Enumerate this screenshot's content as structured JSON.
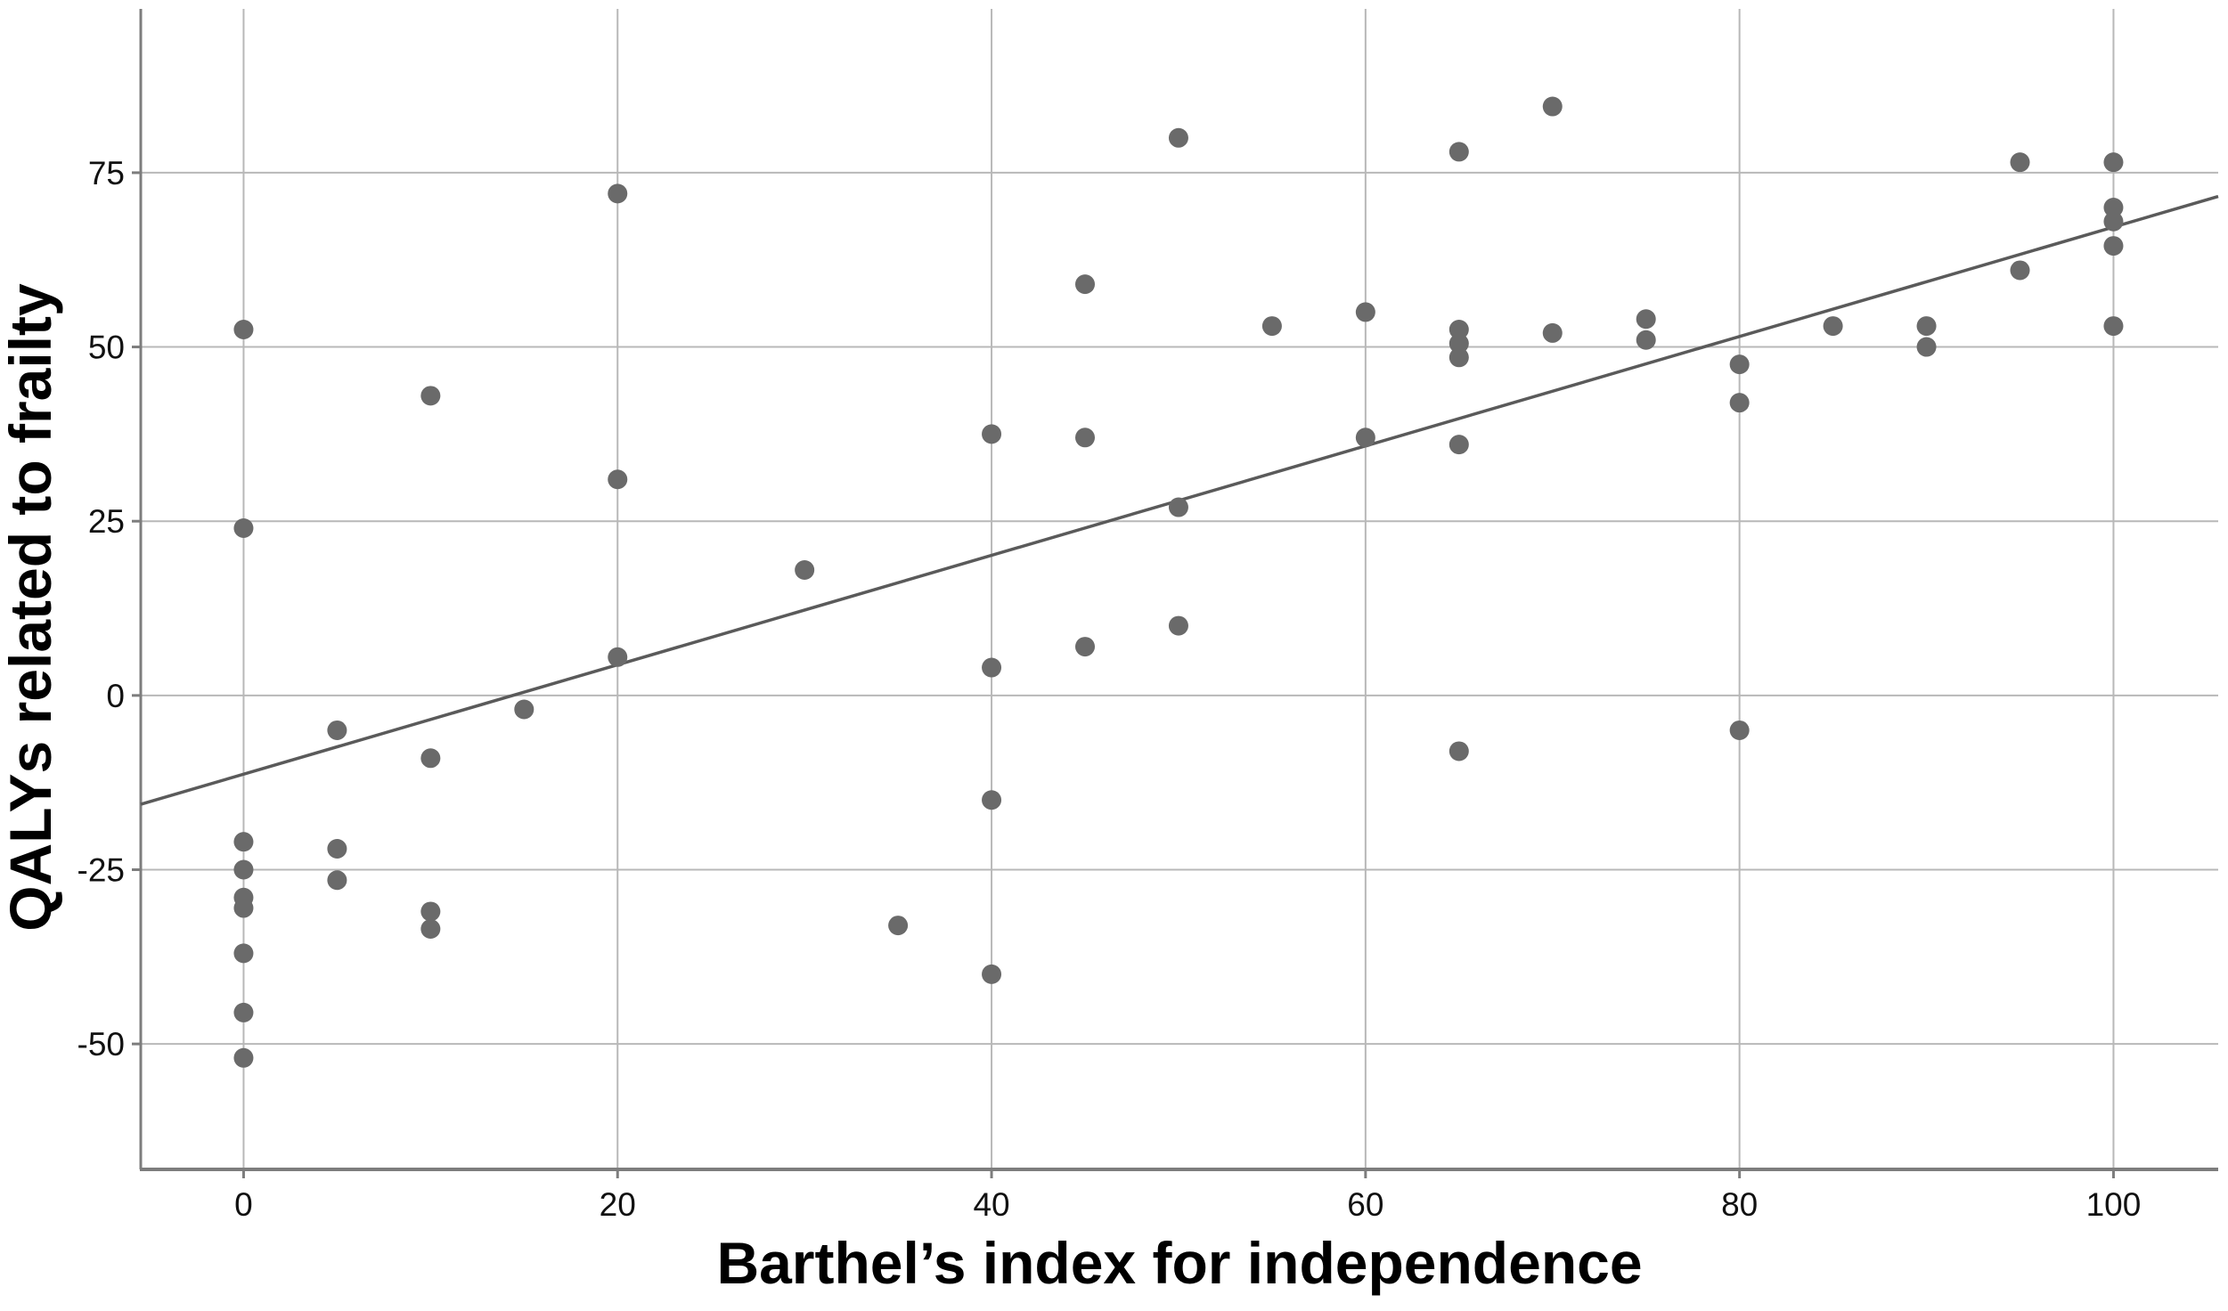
{
  "chart_data": {
    "type": "scatter",
    "title": "",
    "xlabel": "Barthel’s index for independence",
    "ylabel": "QALYs related to frailty",
    "x_ticks": [
      0,
      20,
      40,
      60,
      80,
      100
    ],
    "y_ticks": [
      75,
      50,
      25,
      0,
      -25,
      -50
    ],
    "xlim": [
      -5.5,
      105.6
    ],
    "ylim": [
      -68,
      98.5
    ],
    "grid": true,
    "legend": "none",
    "points": [
      [
        0,
        52.5
      ],
      [
        0,
        24
      ],
      [
        0,
        -21
      ],
      [
        0,
        -25
      ],
      [
        0,
        -29
      ],
      [
        0,
        -30.5
      ],
      [
        0,
        -37
      ],
      [
        0,
        -45.5
      ],
      [
        0,
        -52
      ],
      [
        5,
        -5
      ],
      [
        5,
        -22
      ],
      [
        5,
        -26.5
      ],
      [
        10,
        43
      ],
      [
        10,
        -9
      ],
      [
        10,
        -31
      ],
      [
        10,
        -33.5
      ],
      [
        15,
        -2
      ],
      [
        20,
        72
      ],
      [
        20,
        31
      ],
      [
        20,
        5.5
      ],
      [
        30,
        18
      ],
      [
        35,
        -33
      ],
      [
        40,
        37.5
      ],
      [
        40,
        4
      ],
      [
        40,
        -15
      ],
      [
        40,
        -40
      ],
      [
        45,
        59
      ],
      [
        45,
        37
      ],
      [
        45,
        7
      ],
      [
        50,
        80
      ],
      [
        50,
        27
      ],
      [
        50,
        10
      ],
      [
        55,
        53
      ],
      [
        60,
        55
      ],
      [
        60,
        37
      ],
      [
        65,
        78
      ],
      [
        65,
        52.5
      ],
      [
        65,
        50.5
      ],
      [
        65,
        48.5
      ],
      [
        65,
        36
      ],
      [
        65,
        -8
      ],
      [
        70,
        84.5
      ],
      [
        70,
        52
      ],
      [
        75,
        54
      ],
      [
        75,
        51
      ],
      [
        80,
        47.5
      ],
      [
        80,
        42
      ],
      [
        80,
        -5
      ],
      [
        85,
        53
      ],
      [
        90,
        53
      ],
      [
        90,
        50
      ],
      [
        95,
        76.5
      ],
      [
        95,
        61
      ],
      [
        100,
        76.5
      ],
      [
        100,
        70
      ],
      [
        100,
        68
      ],
      [
        100,
        64.5
      ],
      [
        100,
        53
      ]
    ],
    "trend_line": {
      "slope": 0.785,
      "intercept": -11.3,
      "x_start": -5.5,
      "x_end": 105.6
    },
    "colors": {
      "point": "#6a6a6a",
      "trend": "#5a5a5a",
      "grid": "#b8b8b8",
      "spine": "#7d7d7d",
      "text": "#111111"
    }
  }
}
